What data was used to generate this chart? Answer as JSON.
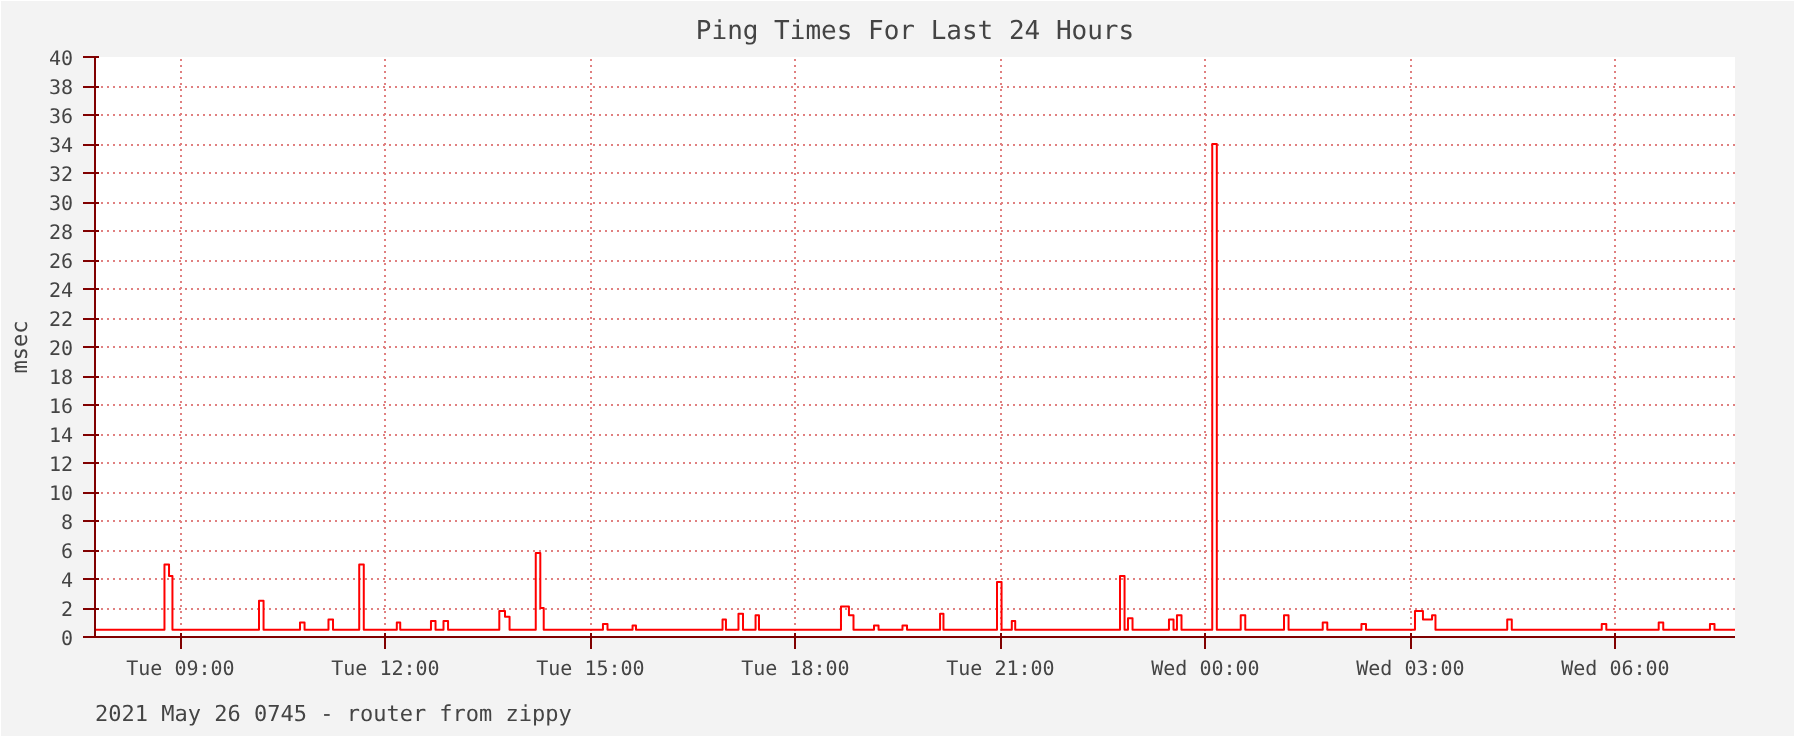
{
  "chart_data": {
    "type": "step",
    "title": "Ping Times For Last 24 Hours",
    "ylabel": "msec",
    "annotations": [
      "2021 May 26 0745  -  router from zippy"
    ],
    "xlim": [
      "2021-05-25T07:45",
      "2021-05-26T07:45"
    ],
    "ylim": [
      0,
      40
    ],
    "xticks": [
      {
        "value": "2021-05-25T09:00",
        "label": "Tue 09:00"
      },
      {
        "value": "2021-05-25T12:00",
        "label": "Tue 12:00"
      },
      {
        "value": "2021-05-25T15:00",
        "label": "Tue 15:00"
      },
      {
        "value": "2021-05-25T18:00",
        "label": "Tue 18:00"
      },
      {
        "value": "2021-05-25T21:00",
        "label": "Tue 21:00"
      },
      {
        "value": "2021-05-26T00:00",
        "label": "Wed 00:00"
      },
      {
        "value": "2021-05-26T03:00",
        "label": "Wed 03:00"
      },
      {
        "value": "2021-05-26T06:00",
        "label": "Wed 06:00"
      }
    ],
    "yticks": [
      0,
      2,
      4,
      6,
      8,
      10,
      12,
      14,
      16,
      18,
      20,
      22,
      24,
      26,
      28,
      30,
      32,
      34,
      36,
      38,
      40
    ],
    "grid": true,
    "series": [
      {
        "color": "#ff0000",
        "x": [
          "2021-05-25T07:45",
          "2021-05-25T08:46",
          "2021-05-25T08:50",
          "2021-05-25T08:53",
          "2021-05-25T10:09",
          "2021-05-25T10:13",
          "2021-05-25T10:45",
          "2021-05-25T10:49",
          "2021-05-25T11:10",
          "2021-05-25T11:14",
          "2021-05-25T11:37",
          "2021-05-25T11:41",
          "2021-05-25T12:10",
          "2021-05-25T12:13",
          "2021-05-25T12:40",
          "2021-05-25T12:44",
          "2021-05-25T12:51",
          "2021-05-25T12:55",
          "2021-05-25T13:40",
          "2021-05-25T13:45",
          "2021-05-25T13:49",
          "2021-05-25T14:12",
          "2021-05-25T14:16",
          "2021-05-25T14:19",
          "2021-05-25T15:11",
          "2021-05-25T15:15",
          "2021-05-25T15:37",
          "2021-05-25T15:40",
          "2021-05-25T16:56",
          "2021-05-25T16:59",
          "2021-05-25T17:10",
          "2021-05-25T17:14",
          "2021-05-25T17:25",
          "2021-05-25T17:28",
          "2021-05-25T18:40",
          "2021-05-25T18:47",
          "2021-05-25T18:51",
          "2021-05-25T19:09",
          "2021-05-25T19:13",
          "2021-05-25T19:34",
          "2021-05-25T19:38",
          "2021-05-25T20:07",
          "2021-05-25T20:10",
          "2021-05-25T20:57",
          "2021-05-25T21:01",
          "2021-05-25T21:10",
          "2021-05-25T21:13",
          "2021-05-25T22:45",
          "2021-05-25T22:49",
          "2021-05-25T22:52",
          "2021-05-25T22:56",
          "2021-05-25T23:28",
          "2021-05-25T23:32",
          "2021-05-25T23:35",
          "2021-05-25T23:39",
          "2021-05-26T00:06",
          "2021-05-26T00:10",
          "2021-05-26T00:31",
          "2021-05-26T00:35",
          "2021-05-26T01:09",
          "2021-05-26T01:13",
          "2021-05-26T01:43",
          "2021-05-26T01:47",
          "2021-05-26T02:17",
          "2021-05-26T02:21",
          "2021-05-26T03:04",
          "2021-05-26T03:11",
          "2021-05-26T03:19",
          "2021-05-26T03:22",
          "2021-05-26T04:25",
          "2021-05-26T04:29",
          "2021-05-26T05:48",
          "2021-05-26T05:52",
          "2021-05-26T06:38",
          "2021-05-26T06:42",
          "2021-05-26T07:23",
          "2021-05-26T07:27",
          "2021-05-26T07:45"
        ],
        "values": [
          0.5,
          5.0,
          4.2,
          0.5,
          2.5,
          0.5,
          1.0,
          0.5,
          1.2,
          0.5,
          5.0,
          0.5,
          1.0,
          0.5,
          1.1,
          0.5,
          1.1,
          0.5,
          1.8,
          1.4,
          0.5,
          5.8,
          2.0,
          0.5,
          0.9,
          0.5,
          0.8,
          0.5,
          1.2,
          0.5,
          1.6,
          0.5,
          1.5,
          0.5,
          2.1,
          1.5,
          0.5,
          0.8,
          0.5,
          0.8,
          0.5,
          1.6,
          0.5,
          3.8,
          0.5,
          1.1,
          0.5,
          4.2,
          0.5,
          1.3,
          0.5,
          1.2,
          0.5,
          1.5,
          0.5,
          34,
          0.5,
          1.5,
          0.5,
          1.5,
          0.5,
          1.0,
          0.5,
          0.9,
          0.5,
          1.8,
          1.2,
          1.5,
          0.5,
          1.2,
          0.5,
          0.9,
          0.5,
          1.0,
          0.5,
          0.9,
          0.5,
          0.5
        ]
      }
    ]
  }
}
